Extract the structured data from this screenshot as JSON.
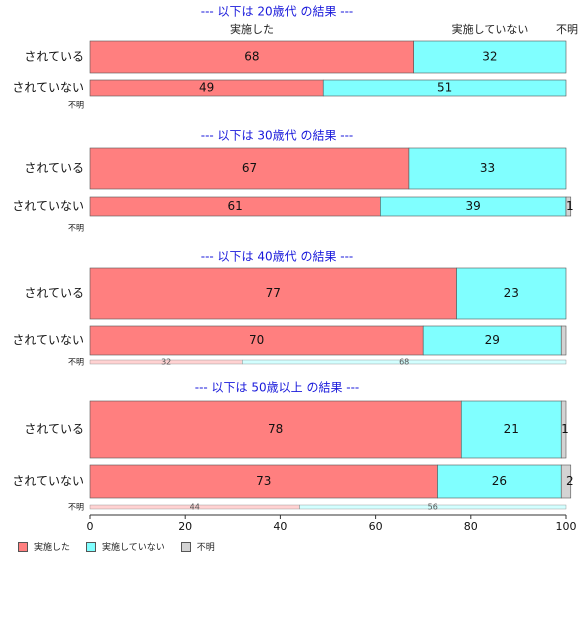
{
  "colors": {
    "implemented": "#ff7f7f",
    "not_implemented": "#80ffff",
    "unknown": "#d3d3d3",
    "title": "#1a1adb"
  },
  "top_headers": {
    "implemented": "実施した",
    "not_implemented": "実施していない",
    "unknown": "不明"
  },
  "legend": {
    "implemented": "実施した",
    "not_implemented": "実施していない",
    "unknown": "不明"
  },
  "chart_data": {
    "type": "bar",
    "orientation": "horizontal-stacked-percent",
    "xlim": [
      0,
      100
    ],
    "xticks": [
      0,
      20,
      40,
      60,
      80,
      100
    ],
    "series_names": [
      "実施した",
      "実施していない",
      "不明"
    ],
    "panels": [
      {
        "title": "--- 以下は 20歳代 の結果 ---",
        "rows": [
          {
            "label": "されている",
            "values": [
              68,
              32,
              0
            ],
            "labels": [
              "68",
              "32",
              ""
            ]
          },
          {
            "label": "されていない",
            "values": [
              49,
              51,
              0
            ],
            "labels": [
              "49",
              "51",
              ""
            ]
          },
          {
            "label": "不明",
            "values": [],
            "labels": []
          }
        ]
      },
      {
        "title": "--- 以下は 30歳代 の結果 ---",
        "rows": [
          {
            "label": "されている",
            "values": [
              67,
              33,
              0
            ],
            "labels": [
              "67",
              "33",
              ""
            ]
          },
          {
            "label": "されていない",
            "values": [
              61,
              39,
              1
            ],
            "labels": [
              "61",
              "39",
              "1"
            ]
          },
          {
            "label": "不明",
            "values": [],
            "labels": []
          }
        ]
      },
      {
        "title": "--- 以下は 40歳代 の結果 ---",
        "rows": [
          {
            "label": "されている",
            "values": [
              77,
              23,
              0
            ],
            "labels": [
              "77",
              "23",
              ""
            ]
          },
          {
            "label": "されていない",
            "values": [
              70,
              29,
              1
            ],
            "labels": [
              "70",
              "29",
              ""
            ]
          },
          {
            "label": "不明",
            "values": [
              32,
              68,
              0
            ],
            "labels": [
              "32",
              "68",
              ""
            ]
          }
        ]
      },
      {
        "title": "--- 以下は 50歳以上 の結果 ---",
        "rows": [
          {
            "label": "されている",
            "values": [
              78,
              21,
              1
            ],
            "labels": [
              "78",
              "21",
              "1"
            ]
          },
          {
            "label": "されていない",
            "values": [
              73,
              26,
              2
            ],
            "labels": [
              "73",
              "26",
              "2"
            ]
          },
          {
            "label": "不明",
            "values": [
              44,
              56,
              0
            ],
            "labels": [
              "44",
              "56",
              ""
            ]
          }
        ]
      }
    ]
  }
}
